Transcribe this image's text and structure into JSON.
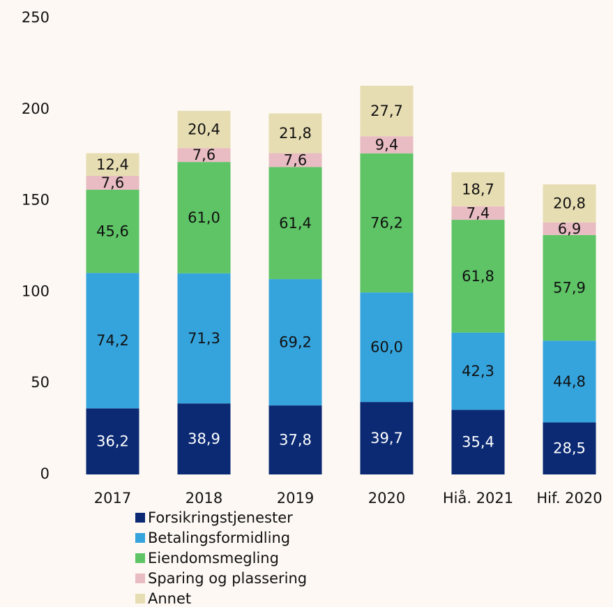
{
  "chart_data": {
    "type": "stacked_bar",
    "categories": [
      "2017",
      "2018",
      "2019",
      "2020",
      "Hiå. 2021",
      "Hif. 2020"
    ],
    "series": [
      {
        "name": "Forsikringstjenester",
        "color": "#0b2a73",
        "values": [
          36.2,
          38.9,
          37.8,
          39.7,
          35.4,
          28.5
        ],
        "value_labels": [
          "36,2",
          "38,9",
          "37,8",
          "39,7",
          "35,4",
          "28,5"
        ]
      },
      {
        "name": "Betalingsformidling",
        "color": "#35a4dd",
        "values": [
          74.2,
          71.3,
          69.2,
          60.0,
          42.3,
          44.8
        ],
        "value_labels": [
          "74,2",
          "71,3",
          "69,2",
          "60,0",
          "42,3",
          "44,8"
        ]
      },
      {
        "name": "Eiendomsmegling",
        "color": "#5ec466",
        "values": [
          45.6,
          61.0,
          61.4,
          76.2,
          61.8,
          57.9
        ],
        "value_labels": [
          "45,6",
          "61,0",
          "61,4",
          "76,2",
          "61,8",
          "57,9"
        ]
      },
      {
        "name": "Sparing og plassering",
        "color": "#e8bcc2",
        "values": [
          7.6,
          7.6,
          7.6,
          9.4,
          7.4,
          6.9
        ],
        "value_labels": [
          "7,6",
          "7,6",
          "7,6",
          "9,4",
          "7,4",
          "6,9"
        ]
      },
      {
        "name": "Annet",
        "color": "#e7ddb2",
        "values": [
          12.4,
          20.4,
          21.8,
          27.7,
          18.7,
          20.8
        ],
        "value_labels": [
          "12,4",
          "20,4",
          "21,8",
          "27,7",
          "18,7",
          "20,8"
        ]
      }
    ],
    "ylim": [
      0,
      250
    ],
    "yticks": [
      0,
      50,
      100,
      150,
      200,
      250
    ],
    "grid": false
  }
}
